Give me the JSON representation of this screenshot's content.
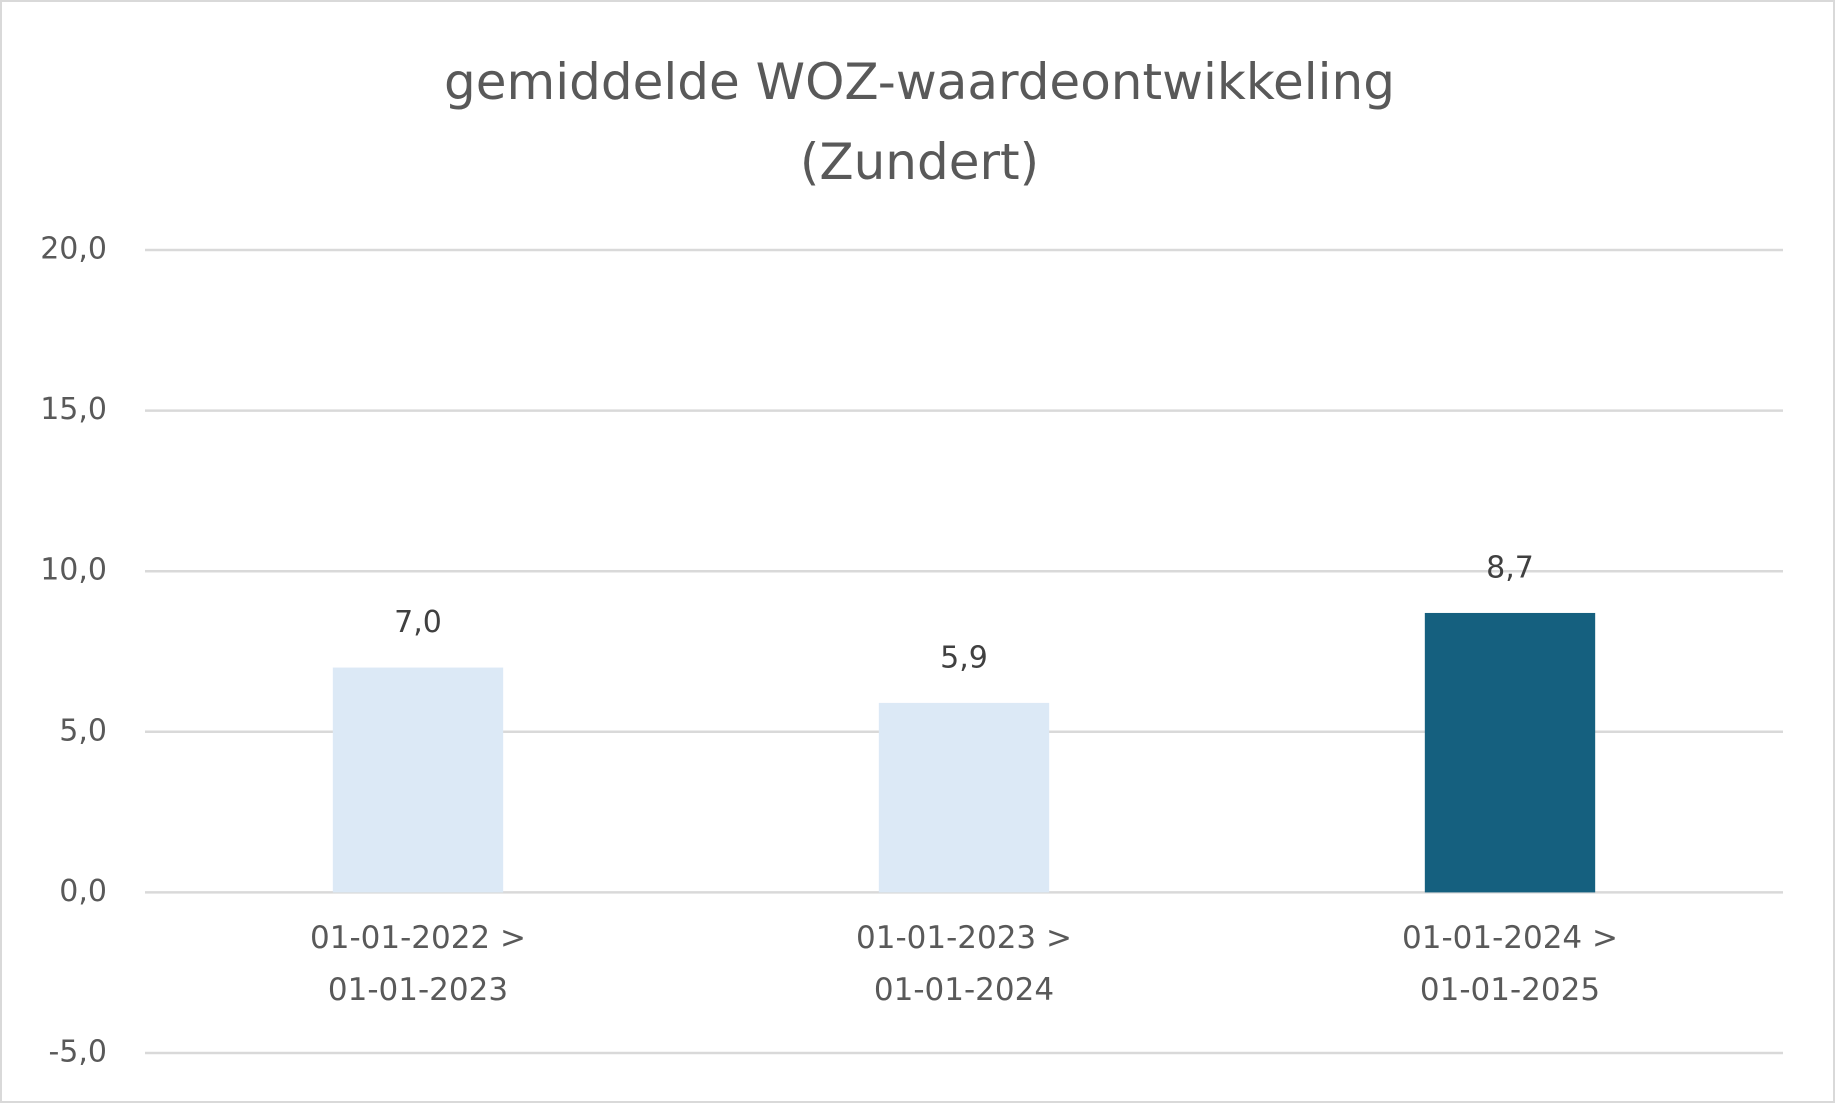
{
  "chart_data": {
    "type": "bar",
    "title": "gemiddelde WOZ-waardeontwikkeling\n(Zundert)",
    "categories": [
      "01-01-2022 >\n01-01-2023",
      "01-01-2023 >\n01-01-2024",
      "01-01-2024 >\n01-01-2025"
    ],
    "values": [
      7.0,
      5.9,
      8.7
    ],
    "value_labels": [
      "7,0",
      "5,9",
      "8,7"
    ],
    "colors": [
      "#dce9f6",
      "#dce9f6",
      "#15607f"
    ],
    "ylim": [
      -5,
      20
    ],
    "yticks": [
      {
        "value": -5,
        "label": "-5,0"
      },
      {
        "value": 0,
        "label": "0,0"
      },
      {
        "value": 5,
        "label": "5,0"
      },
      {
        "value": 10,
        "label": "10,0"
      },
      {
        "value": 15,
        "label": "15,0"
      },
      {
        "value": 20,
        "label": "20,0"
      }
    ],
    "grid": true
  }
}
